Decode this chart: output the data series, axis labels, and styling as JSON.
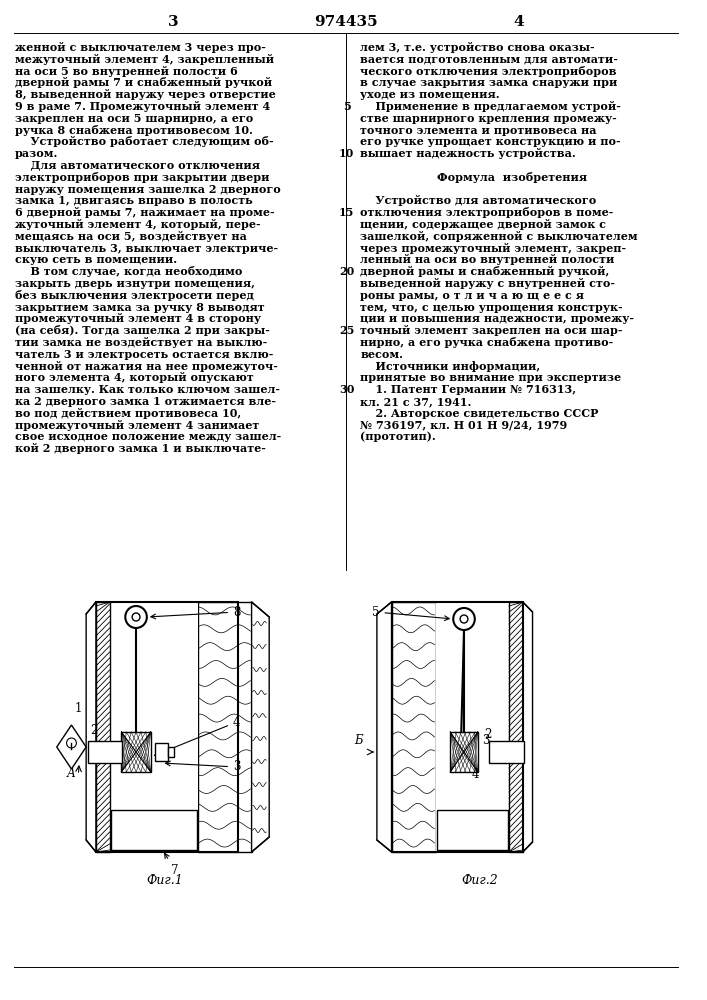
{
  "page_number_left": "3",
  "page_number_center": "974435",
  "page_number_right": "4",
  "background_color": "#ffffff",
  "text_color": "#000000",
  "font_size_body": 8.0,
  "col1_text": [
    "женной с выключателем 3 через про-",
    "межуточный элемент 4, закрепленный",
    "на оси 5 во внутренней полости 6",
    "дверной рамы 7 и снабженный ручкой",
    "8, выведенной наружу через отверстие",
    "9 в раме 7. Промежуточный элемент 4",
    "закреплен на оси 5 шарнирно, а его",
    "ручка 8 снабжена противовесом 10.",
    "    Устройство работает следующим об-",
    "разом.",
    "    Для автоматического отключения",
    "электроприборов при закрытии двери",
    "наружу помещения зашелка 2 дверного",
    "замка 1, двигаясь вправо в полость",
    "6 дверной рамы 7, нажимает на проме-",
    "жуточный элемент 4, который, пере-",
    "мещаясь на оси 5, воздействует на",
    "выключатель 3, выключает электриче-",
    "скую сеть в помещении.",
    "    В том случае, когда необходимо",
    "закрыть дверь изнутри помещения,",
    "без выключения электросети перед",
    "закрытием замка за ручку 8 выводят",
    "промежуточный элемент 4 в сторону",
    "(на себя). Тогда зашелка 2 при закры-",
    "тии замка не воздействует на выклю-",
    "чатель 3 и электросеть остается вклю-",
    "ченной от нажатия на нее промежуточ-",
    "ного элемента 4, который опускают",
    "на зашелку. Как только ключом зашел-",
    "ка 2 дверного замка 1 отжимается вле-",
    "во под действием противовеса 10,",
    "промежуточный элемент 4 занимает",
    "свое исходное положение между зашел-",
    "кой 2 дверного замка 1 и выключате-"
  ],
  "col2_text": [
    "лем 3, т.е. устройство снова оказы-",
    "вается подготовленным для автомати-",
    "ческого отключения электроприборов",
    "в случае закрытия замка снаружи при",
    "уходе из помещения.",
    "    Применение в предлагаемом устрой-",
    "стве шарнирного крепления промежу-",
    "точного элемента и противовеса на",
    "его ручке упрощает конструкцию и по-",
    "вышает надежность устройства.",
    "",
    "    Формула  изобретения",
    "",
    "    Устройство для автоматического",
    "отключения электроприборов в поме-",
    "щении, содержащее дверной замок с",
    "зашелкой, сопряженной с выключателем",
    "через промежуточный элемент, закреп-",
    "ленный на оси во внутренней полости",
    "дверной рамы и снабженный ручкой,",
    "выведенной наружу с внутренней сто-",
    "роны рамы, о т л и ч а ю щ е е с я",
    "тем, что, с целью упрощения конструк-",
    "ции и повышения надежности, промежу-",
    "точный элемент закреплен на оси шар-",
    "нирно, а его ручка снабжена противо-",
    "весом.",
    "    Источники информации,",
    "принятые во внимание при экспертизе",
    "    1. Патент Германии № 716313,",
    "кл. 21 с 37, 1941.",
    "    2. Авторское свидетельство СССР",
    "№ 736197, кл. Н 01 Н 9/24, 1979",
    "(прототип)."
  ],
  "line_numbers": [
    "5",
    "10",
    "15",
    "20",
    "25",
    "30"
  ],
  "line_number_row_col1": [
    5,
    9,
    14,
    19,
    24,
    29
  ],
  "fig1_caption": "Фиг.1",
  "fig2_caption": "Фиг.2"
}
